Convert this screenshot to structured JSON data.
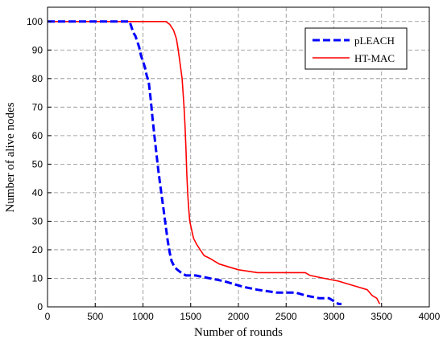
{
  "chart_data": {
    "type": "line",
    "xlabel": "Number of rounds",
    "ylabel": "Number of alive nodes",
    "xlim": [
      0,
      4000
    ],
    "ylim": [
      0,
      105
    ],
    "xticks": [
      0,
      500,
      1000,
      1500,
      2000,
      2500,
      3000,
      3500,
      4000
    ],
    "yticks": [
      0,
      10,
      20,
      30,
      40,
      50,
      60,
      70,
      80,
      90,
      100
    ],
    "xtick_labels": [
      "0",
      "500",
      "1000",
      "1500",
      "2000",
      "2500",
      "3000",
      "3500",
      "4000"
    ],
    "ytick_labels": [
      "0",
      "10",
      "20",
      "30",
      "40",
      "50",
      "60",
      "70",
      "80",
      "90",
      "100"
    ],
    "grid": true,
    "legend_position": "top-right",
    "series": [
      {
        "name": "pLEACH",
        "color": "#0000ff",
        "style": "dashed",
        "points": [
          [
            0,
            100
          ],
          [
            860,
            100
          ],
          [
            880,
            98
          ],
          [
            900,
            96
          ],
          [
            920,
            95
          ],
          [
            940,
            93
          ],
          [
            960,
            91
          ],
          [
            980,
            88
          ],
          [
            1000,
            86
          ],
          [
            1020,
            84
          ],
          [
            1040,
            81
          ],
          [
            1060,
            79
          ],
          [
            1080,
            73
          ],
          [
            1100,
            66
          ],
          [
            1120,
            60
          ],
          [
            1140,
            54
          ],
          [
            1160,
            48
          ],
          [
            1180,
            43
          ],
          [
            1200,
            38
          ],
          [
            1220,
            33
          ],
          [
            1240,
            28
          ],
          [
            1260,
            23
          ],
          [
            1280,
            19
          ],
          [
            1300,
            16
          ],
          [
            1330,
            14
          ],
          [
            1360,
            13
          ],
          [
            1400,
            12
          ],
          [
            1450,
            11
          ],
          [
            1550,
            11
          ],
          [
            1700,
            10
          ],
          [
            1850,
            9
          ],
          [
            1950,
            8
          ],
          [
            2050,
            7
          ],
          [
            2200,
            6
          ],
          [
            2400,
            5
          ],
          [
            2600,
            5
          ],
          [
            2700,
            4
          ],
          [
            2850,
            3
          ],
          [
            2950,
            3
          ],
          [
            3000,
            2
          ],
          [
            3050,
            1
          ],
          [
            3080,
            1
          ]
        ]
      },
      {
        "name": "HT-MAC",
        "color": "#ff0000",
        "style": "solid",
        "points": [
          [
            0,
            100
          ],
          [
            1240,
            100
          ],
          [
            1280,
            99
          ],
          [
            1320,
            97
          ],
          [
            1350,
            94
          ],
          [
            1370,
            90
          ],
          [
            1390,
            85
          ],
          [
            1410,
            80
          ],
          [
            1420,
            75
          ],
          [
            1430,
            70
          ],
          [
            1440,
            64
          ],
          [
            1450,
            56
          ],
          [
            1460,
            46
          ],
          [
            1470,
            39
          ],
          [
            1480,
            34
          ],
          [
            1490,
            30
          ],
          [
            1510,
            27
          ],
          [
            1530,
            24
          ],
          [
            1560,
            22
          ],
          [
            1600,
            20
          ],
          [
            1640,
            18
          ],
          [
            1700,
            17
          ],
          [
            1750,
            16
          ],
          [
            1800,
            15
          ],
          [
            1900,
            14
          ],
          [
            2000,
            13
          ],
          [
            2200,
            12
          ],
          [
            2700,
            12
          ],
          [
            2750,
            11
          ],
          [
            2900,
            10
          ],
          [
            3050,
            9
          ],
          [
            3150,
            8
          ],
          [
            3250,
            7
          ],
          [
            3350,
            6
          ],
          [
            3400,
            4
          ],
          [
            3450,
            3
          ],
          [
            3480,
            1
          ]
        ]
      }
    ]
  }
}
